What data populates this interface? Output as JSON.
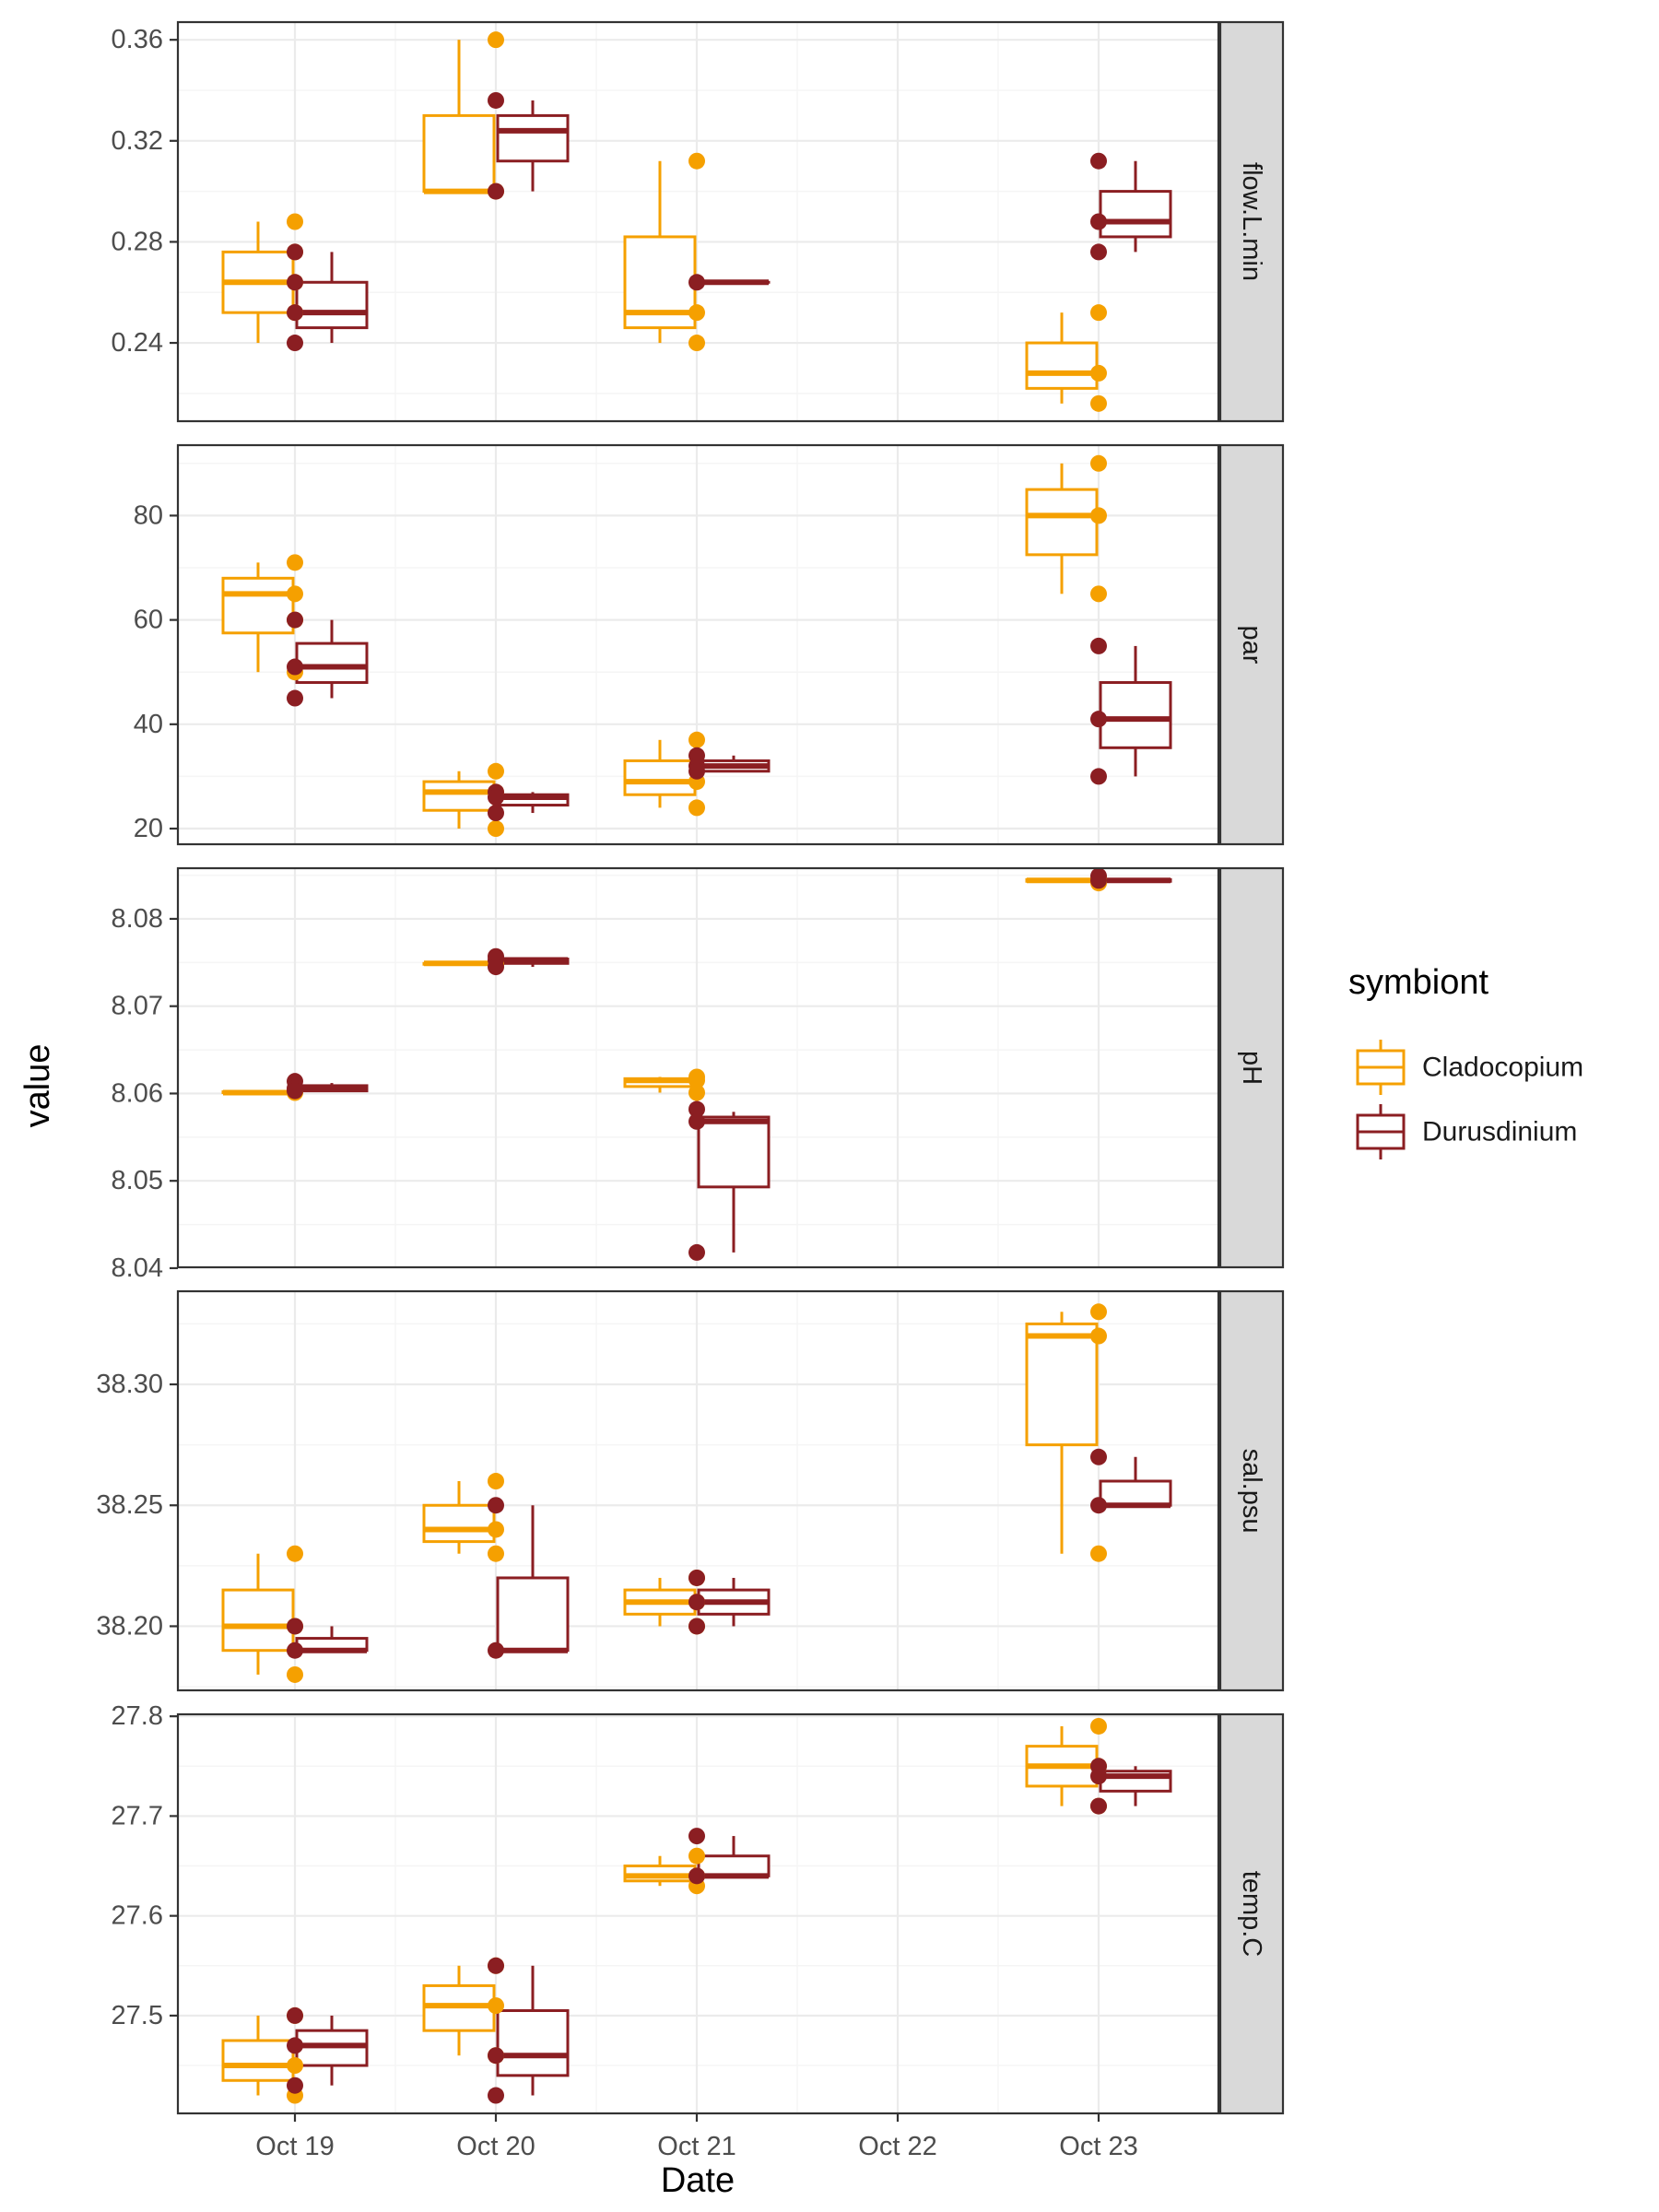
{
  "chart_data": {
    "type": "box",
    "xlabel": "Date",
    "ylabel": "value",
    "x_categories": [
      "Oct 19",
      "Oct 20",
      "Oct 21",
      "Oct 22",
      "Oct 23"
    ],
    "legend": {
      "title": "symbiont",
      "position": "right",
      "entries": [
        {
          "name": "Cladocopium",
          "color": "#F5A000"
        },
        {
          "name": "Durusdinium",
          "color": "#8B1E22"
        }
      ]
    },
    "grid": true,
    "facets": [
      {
        "label": "flow.L.min",
        "ylim": [
          0.209,
          0.367
        ],
        "yticks": [
          0.24,
          0.28,
          0.32,
          0.36
        ],
        "ytick_labels": [
          "0.24",
          "0.28",
          "0.32",
          "0.36"
        ],
        "boxes": [
          {
            "date": "Oct 19",
            "symbiont": "Cladocopium",
            "whisker_low": 0.24,
            "q1": 0.252,
            "median": 0.264,
            "q3": 0.276,
            "whisker_high": 0.288,
            "points": [
              0.288,
              0.276,
              0.264,
              0.252
            ]
          },
          {
            "date": "Oct 19",
            "symbiont": "Durusdinium",
            "whisker_low": 0.24,
            "q1": 0.246,
            "median": 0.252,
            "q3": 0.264,
            "whisker_high": 0.276,
            "points": [
              0.276,
              0.264,
              0.252,
              0.24
            ]
          },
          {
            "date": "Oct 20",
            "symbiont": "Cladocopium",
            "whisker_low": 0.3,
            "q1": 0.3,
            "median": 0.3,
            "q3": 0.33,
            "whisker_high": 0.36,
            "points": [
              0.36,
              0.3
            ]
          },
          {
            "date": "Oct 20",
            "symbiont": "Durusdinium",
            "whisker_low": 0.3,
            "q1": 0.312,
            "median": 0.324,
            "q3": 0.33,
            "whisker_high": 0.336,
            "points": [
              0.336,
              0.3
            ]
          },
          {
            "date": "Oct 21",
            "symbiont": "Cladocopium",
            "whisker_low": 0.24,
            "q1": 0.246,
            "median": 0.252,
            "q3": 0.282,
            "whisker_high": 0.312,
            "points": [
              0.312,
              0.252,
              0.24
            ]
          },
          {
            "date": "Oct 21",
            "symbiont": "Durusdinium",
            "whisker_low": 0.264,
            "q1": 0.264,
            "median": 0.264,
            "q3": 0.264,
            "whisker_high": 0.264,
            "points": [
              0.264
            ]
          },
          {
            "date": "Oct 23",
            "symbiont": "Cladocopium",
            "whisker_low": 0.216,
            "q1": 0.222,
            "median": 0.228,
            "q3": 0.24,
            "whisker_high": 0.252,
            "points": [
              0.252,
              0.228,
              0.216
            ]
          },
          {
            "date": "Oct 23",
            "symbiont": "Durusdinium",
            "whisker_low": 0.276,
            "q1": 0.282,
            "median": 0.288,
            "q3": 0.3,
            "whisker_high": 0.312,
            "points": [
              0.312,
              0.288,
              0.276
            ]
          }
        ]
      },
      {
        "label": "par",
        "ylim": [
          17.0,
          93.5
        ],
        "yticks": [
          20,
          40,
          60,
          80
        ],
        "ytick_labels": [
          "20",
          "40",
          "60",
          "80"
        ],
        "boxes": [
          {
            "date": "Oct 19",
            "symbiont": "Cladocopium",
            "whisker_low": 50,
            "q1": 57.5,
            "median": 65,
            "q3": 68,
            "whisker_high": 71,
            "points": [
              71,
              65,
              60,
              50
            ]
          },
          {
            "date": "Oct 19",
            "symbiont": "Durusdinium",
            "whisker_low": 45,
            "q1": 48,
            "median": 51,
            "q3": 55.5,
            "whisker_high": 60,
            "points": [
              60,
              51,
              45
            ]
          },
          {
            "date": "Oct 20",
            "symbiont": "Cladocopium",
            "whisker_low": 20,
            "q1": 23.5,
            "median": 27,
            "q3": 29,
            "whisker_high": 31,
            "points": [
              31,
              27,
              20
            ]
          },
          {
            "date": "Oct 20",
            "symbiont": "Durusdinium",
            "whisker_low": 23,
            "q1": 24.5,
            "median": 26,
            "q3": 26.5,
            "whisker_high": 27,
            "points": [
              27,
              26,
              23
            ]
          },
          {
            "date": "Oct 21",
            "symbiont": "Cladocopium",
            "whisker_low": 24,
            "q1": 26.5,
            "median": 29,
            "q3": 33,
            "whisker_high": 37,
            "points": [
              37,
              29,
              24
            ]
          },
          {
            "date": "Oct 21",
            "symbiont": "Durusdinium",
            "whisker_low": 31,
            "q1": 31,
            "median": 32,
            "q3": 33,
            "whisker_high": 34,
            "points": [
              34,
              32,
              31
            ]
          },
          {
            "date": "Oct 23",
            "symbiont": "Cladocopium",
            "whisker_low": 65,
            "q1": 72.5,
            "median": 80,
            "q3": 85,
            "whisker_high": 90,
            "points": [
              90,
              80,
              65
            ]
          },
          {
            "date": "Oct 23",
            "symbiont": "Durusdinium",
            "whisker_low": 30,
            "q1": 35.5,
            "median": 41,
            "q3": 48,
            "whisker_high": 55,
            "points": [
              55,
              41,
              30
            ]
          }
        ]
      },
      {
        "label": "pH",
        "ylim": [
          8.0401,
          8.0858
        ],
        "yticks": [
          8.04,
          8.05,
          8.06,
          8.07,
          8.08
        ],
        "ytick_labels": [
          "8.04",
          "8.05",
          "8.06",
          "8.07",
          "8.08"
        ],
        "boxes": [
          {
            "date": "Oct 19",
            "symbiont": "Cladocopium",
            "whisker_low": 8.0601,
            "q1": 8.0601,
            "median": 8.0601,
            "q3": 8.0602,
            "whisker_high": 8.0602,
            "points": [
              8.0602,
              8.0601
            ]
          },
          {
            "date": "Oct 19",
            "symbiont": "Durusdinium",
            "whisker_low": 8.0603,
            "q1": 8.0603,
            "median": 8.0606,
            "q3": 8.0609,
            "whisker_high": 8.0612,
            "points": [
              8.0614,
              8.0606,
              8.0603
            ]
          },
          {
            "date": "Oct 20",
            "symbiont": "Cladocopium",
            "whisker_low": 8.0748,
            "q1": 8.0748,
            "median": 8.0749,
            "q3": 8.0749,
            "whisker_high": 8.075,
            "points": [
              8.075,
              8.0748
            ]
          },
          {
            "date": "Oct 20",
            "symbiont": "Durusdinium",
            "whisker_low": 8.0745,
            "q1": 8.0749,
            "median": 8.0753,
            "q3": 8.0754,
            "whisker_high": 8.0755,
            "points": [
              8.0757,
              8.0753,
              8.0745
            ]
          },
          {
            "date": "Oct 21",
            "symbiont": "Cladocopium",
            "whisker_low": 8.0601,
            "q1": 8.0608,
            "median": 8.0615,
            "q3": 8.0617,
            "whisker_high": 8.0619,
            "points": [
              8.0619,
              8.0615,
              8.0601
            ]
          },
          {
            "date": "Oct 21",
            "symbiont": "Durusdinium",
            "whisker_low": 8.0418,
            "q1": 8.0493,
            "median": 8.0568,
            "q3": 8.0573,
            "whisker_high": 8.0579,
            "points": [
              8.0582,
              8.0568,
              8.0418
            ]
          },
          {
            "date": "Oct 23",
            "symbiont": "Cladocopium",
            "whisker_low": 8.0843,
            "q1": 8.0843,
            "median": 8.0844,
            "q3": 8.0845,
            "whisker_high": 8.0845,
            "points": [
              8.0847,
              8.0843,
              8.0841
            ]
          },
          {
            "date": "Oct 23",
            "symbiont": "Durusdinium",
            "whisker_low": 8.0843,
            "q1": 8.0843,
            "median": 8.0844,
            "q3": 8.0845,
            "whisker_high": 8.0845,
            "points": [
              8.0849,
              8.0844
            ]
          }
        ]
      },
      {
        "label": "sal.psu",
        "ylim": [
          38.1735,
          38.3385
        ],
        "yticks": [
          38.2,
          38.25,
          38.3
        ],
        "ytick_labels": [
          "38.20",
          "38.25",
          "38.30"
        ],
        "boxes": [
          {
            "date": "Oct 19",
            "symbiont": "Cladocopium",
            "whisker_low": 38.18,
            "q1": 38.19,
            "median": 38.2,
            "q3": 38.215,
            "whisker_high": 38.23,
            "points": [
              38.23,
              38.2,
              38.18
            ]
          },
          {
            "date": "Oct 19",
            "symbiont": "Durusdinium",
            "whisker_low": 38.19,
            "q1": 38.19,
            "median": 38.19,
            "q3": 38.195,
            "whisker_high": 38.2,
            "points": [
              38.2,
              38.19
            ]
          },
          {
            "date": "Oct 20",
            "symbiont": "Cladocopium",
            "whisker_low": 38.23,
            "q1": 38.235,
            "median": 38.24,
            "q3": 38.25,
            "whisker_high": 38.26,
            "points": [
              38.26,
              38.24,
              38.23
            ]
          },
          {
            "date": "Oct 20",
            "symbiont": "Durusdinium",
            "whisker_low": 38.19,
            "q1": 38.19,
            "median": 38.19,
            "q3": 38.22,
            "whisker_high": 38.25,
            "points": [
              38.25,
              38.19
            ]
          },
          {
            "date": "Oct 21",
            "symbiont": "Cladocopium",
            "whisker_low": 38.2,
            "q1": 38.205,
            "median": 38.21,
            "q3": 38.215,
            "whisker_high": 38.22,
            "points": [
              38.22,
              38.21,
              38.2
            ]
          },
          {
            "date": "Oct 21",
            "symbiont": "Durusdinium",
            "whisker_low": 38.2,
            "q1": 38.205,
            "median": 38.21,
            "q3": 38.215,
            "whisker_high": 38.22,
            "points": [
              38.22,
              38.21,
              38.2
            ]
          },
          {
            "date": "Oct 23",
            "symbiont": "Cladocopium",
            "whisker_low": 38.23,
            "q1": 38.275,
            "median": 38.32,
            "q3": 38.325,
            "whisker_high": 38.33,
            "points": [
              38.33,
              38.32,
              38.23
            ]
          },
          {
            "date": "Oct 23",
            "symbiont": "Durusdinium",
            "whisker_low": 38.25,
            "q1": 38.25,
            "median": 38.25,
            "q3": 38.26,
            "whisker_high": 38.27,
            "points": [
              38.27,
              38.25
            ]
          }
        ]
      },
      {
        "label": "temp.C",
        "ylim": [
          27.402,
          27.802
        ],
        "yticks": [
          27.5,
          27.6,
          27.7,
          27.8
        ],
        "ytick_labels": [
          "27.5",
          "27.6",
          "27.7",
          "27.8"
        ],
        "boxes": [
          {
            "date": "Oct 19",
            "symbiont": "Cladocopium",
            "whisker_low": 27.42,
            "q1": 27.435,
            "median": 27.45,
            "q3": 27.475,
            "whisker_high": 27.5,
            "points": [
              27.5,
              27.45,
              27.42
            ]
          },
          {
            "date": "Oct 19",
            "symbiont": "Durusdinium",
            "whisker_low": 27.43,
            "q1": 27.45,
            "median": 27.47,
            "q3": 27.485,
            "whisker_high": 27.5,
            "points": [
              27.5,
              27.47,
              27.43
            ]
          },
          {
            "date": "Oct 20",
            "symbiont": "Cladocopium",
            "whisker_low": 27.46,
            "q1": 27.485,
            "median": 27.51,
            "q3": 27.53,
            "whisker_high": 27.55,
            "points": [
              27.55,
              27.51,
              27.46
            ]
          },
          {
            "date": "Oct 20",
            "symbiont": "Durusdinium",
            "whisker_low": 27.42,
            "q1": 27.44,
            "median": 27.46,
            "q3": 27.505,
            "whisker_high": 27.55,
            "points": [
              27.55,
              27.46,
              27.42
            ]
          },
          {
            "date": "Oct 21",
            "symbiont": "Cladocopium",
            "whisker_low": 27.63,
            "q1": 27.635,
            "median": 27.64,
            "q3": 27.65,
            "whisker_high": 27.66,
            "points": [
              27.66,
              27.64,
              27.63
            ]
          },
          {
            "date": "Oct 21",
            "symbiont": "Durusdinium",
            "whisker_low": 27.64,
            "q1": 27.64,
            "median": 27.64,
            "q3": 27.66,
            "whisker_high": 27.68,
            "points": [
              27.68,
              27.64
            ]
          },
          {
            "date": "Oct 23",
            "symbiont": "Cladocopium",
            "whisker_low": 27.71,
            "q1": 27.73,
            "median": 27.75,
            "q3": 27.77,
            "whisker_high": 27.79,
            "points": [
              27.79,
              27.75,
              27.71
            ]
          },
          {
            "date": "Oct 23",
            "symbiont": "Durusdinium",
            "whisker_low": 27.71,
            "q1": 27.725,
            "median": 27.74,
            "q3": 27.745,
            "whisker_high": 27.75,
            "points": [
              27.75,
              27.74,
              27.71
            ]
          }
        ]
      }
    ]
  }
}
